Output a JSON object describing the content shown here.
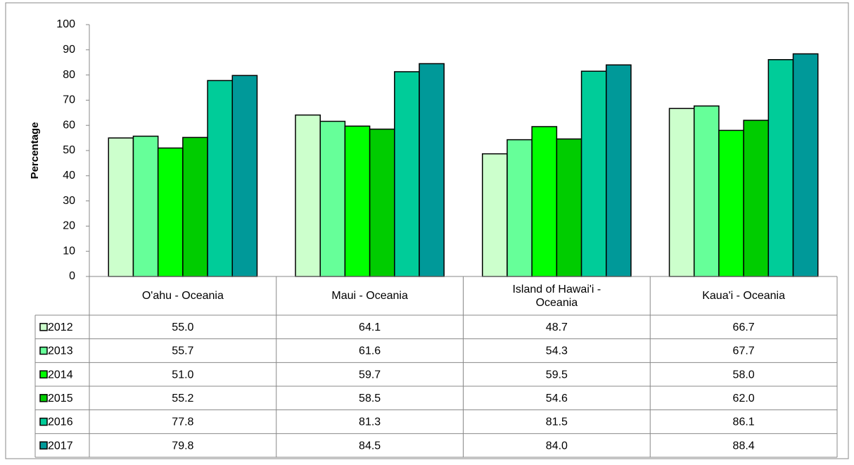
{
  "chart_data": {
    "type": "bar",
    "y_label": "Percentage",
    "categories": [
      "O'ahu - Oceania",
      "Maui - Oceania",
      "Island of Hawai'i - Oceania",
      "Kaua'i - Oceania"
    ],
    "series": [
      {
        "name": "2012",
        "color": "#ccffcc",
        "values": [
          55,
          64.1,
          48.7,
          66.7
        ],
        "value_labels": [
          "55.0",
          "64.1",
          "48.7",
          "66.7"
        ]
      },
      {
        "name": "2013",
        "color": "#66ff99",
        "values": [
          55.7,
          61.6,
          54.3,
          67.7
        ],
        "value_labels": [
          "55.7",
          "61.6",
          "54.3",
          "67.7"
        ]
      },
      {
        "name": "2014",
        "color": "#00ff00",
        "values": [
          51,
          59.7,
          59.5,
          58
        ],
        "value_labels": [
          "51.0",
          "59.7",
          "59.5",
          "58.0"
        ]
      },
      {
        "name": "2015",
        "color": "#00cc00",
        "values": [
          55.2,
          58.5,
          54.6,
          62
        ],
        "value_labels": [
          "55.2",
          "58.5",
          "54.6",
          "62.0"
        ]
      },
      {
        "name": "2016",
        "color": "#00cc99",
        "values": [
          77.8,
          81.3,
          81.5,
          86.1
        ],
        "value_labels": [
          "77.8",
          "81.3",
          "81.5",
          "86.1"
        ]
      },
      {
        "name": "2017",
        "color": "#009999",
        "values": [
          79.8,
          84.5,
          84,
          88.4
        ],
        "value_labels": [
          "79.8",
          "84.5",
          "84.0",
          "88.4"
        ]
      }
    ],
    "ylim": [
      0,
      100
    ],
    "yticks": [
      0,
      10,
      20,
      30,
      40,
      50,
      60,
      70,
      80,
      90,
      100
    ],
    "grid": false
  }
}
